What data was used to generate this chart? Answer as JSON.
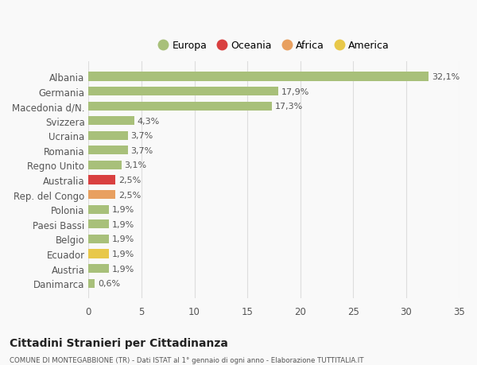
{
  "categories": [
    "Danimarca",
    "Austria",
    "Ecuador",
    "Belgio",
    "Paesi Bassi",
    "Polonia",
    "Rep. del Congo",
    "Australia",
    "Regno Unito",
    "Romania",
    "Ucraina",
    "Svizzera",
    "Macedonia d/N.",
    "Germania",
    "Albania"
  ],
  "values": [
    0.6,
    1.9,
    1.9,
    1.9,
    1.9,
    1.9,
    2.5,
    2.5,
    3.1,
    3.7,
    3.7,
    4.3,
    17.3,
    17.9,
    32.1
  ],
  "labels": [
    "0,6%",
    "1,9%",
    "1,9%",
    "1,9%",
    "1,9%",
    "1,9%",
    "2,5%",
    "2,5%",
    "3,1%",
    "3,7%",
    "3,7%",
    "4,3%",
    "17,3%",
    "17,9%",
    "32,1%"
  ],
  "colors": [
    "#a8c07a",
    "#a8c07a",
    "#e8c84a",
    "#a8c07a",
    "#a8c07a",
    "#a8c07a",
    "#e8a060",
    "#d94040",
    "#a8c07a",
    "#a8c07a",
    "#a8c07a",
    "#a8c07a",
    "#a8c07a",
    "#a8c07a",
    "#a8c07a"
  ],
  "legend_labels": [
    "Europa",
    "Oceania",
    "Africa",
    "America"
  ],
  "legend_colors": [
    "#a8c07a",
    "#d94040",
    "#e8a060",
    "#e8c84a"
  ],
  "title": "Cittadini Stranieri per Cittadinanza",
  "subtitle": "COMUNE DI MONTEGABBIONE (TR) - Dati ISTAT al 1° gennaio di ogni anno - Elaborazione TUTTITALIA.IT",
  "xlim": [
    0,
    35
  ],
  "xticks": [
    0,
    5,
    10,
    15,
    20,
    25,
    30,
    35
  ],
  "background_color": "#f9f9f9",
  "grid_color": "#dddddd",
  "bar_height": 0.6
}
